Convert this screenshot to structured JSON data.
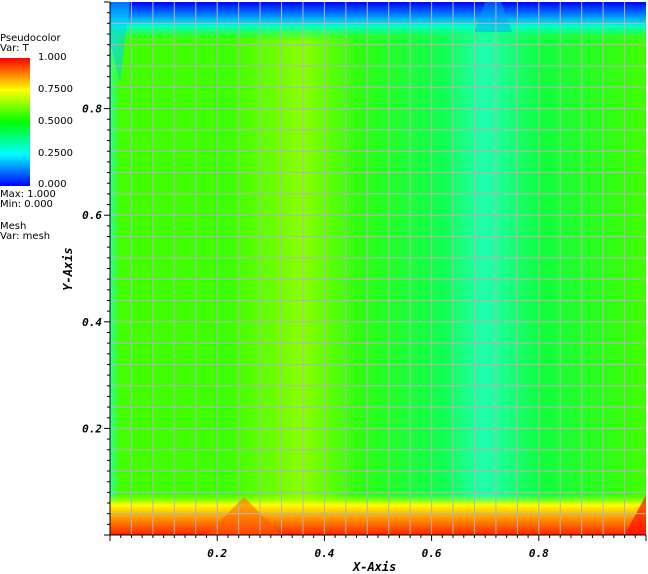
{
  "legend": {
    "pseudo_title": "Pseudocolor",
    "pseudo_var": "Var: T",
    "ticks": [
      "1.000",
      "0.7500",
      "0.5000",
      "0.2500",
      "0.000"
    ],
    "max": "Max:  1.000",
    "min": "Min:  0.000",
    "mesh_title": "Mesh",
    "mesh_var": "Var: mesh"
  },
  "colors": {
    "colormap": [
      "#0000ff",
      "#00ffff",
      "#00ff00",
      "#ffff00",
      "#ff0000"
    ],
    "grid": "#b4b4b4",
    "axis": "#000000"
  },
  "chart_data": {
    "type": "heatmap",
    "title": "",
    "xlabel": "X-Axis",
    "ylabel": "Y-Axis",
    "xlim": [
      0,
      1
    ],
    "ylim": [
      0,
      1
    ],
    "x_ticks": [
      "0.2",
      "0.4",
      "0.6",
      "0.8"
    ],
    "x_tick_values": [
      0.2,
      0.4,
      0.6,
      0.8
    ],
    "y_ticks": [
      "0.2",
      "0.4",
      "0.6",
      "0.8"
    ],
    "y_tick_values": [
      0.2,
      0.4,
      0.6,
      0.8
    ],
    "variable": "T",
    "value_range": [
      0,
      1
    ],
    "grid": true,
    "field_description_values": {
      "bulk": 0.5,
      "bottom_edge": 1.0,
      "top_edge": 0.0,
      "cool_band_x": 0.7,
      "warm_band_x": 0.37
    }
  }
}
